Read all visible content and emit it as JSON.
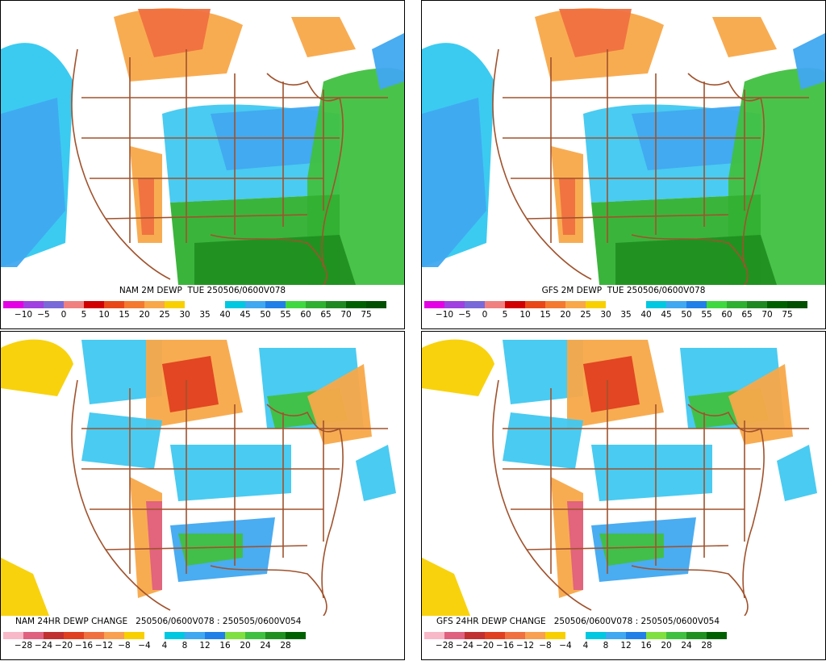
{
  "panels": [
    {
      "id": "nam-dewp",
      "title": "NAM 2M DEWP  TUE 250506/0600V078",
      "kind": "dewp",
      "scale_labels": [
        "−10",
        "−5",
        "0",
        "5",
        "10",
        "15",
        "20",
        "25",
        "30",
        "35",
        "40",
        "45",
        "50",
        "55",
        "60",
        "65",
        "70",
        "75"
      ]
    },
    {
      "id": "gfs-dewp",
      "title": "GFS 2M DEWP  TUE 250506/0600V078",
      "kind": "dewp",
      "scale_labels": [
        "−10",
        "−5",
        "0",
        "5",
        "10",
        "15",
        "20",
        "25",
        "30",
        "35",
        "40",
        "45",
        "50",
        "55",
        "60",
        "65",
        "70",
        "75"
      ]
    },
    {
      "id": "nam-change",
      "title": "NAM 24HR DEWP CHANGE   250506/0600V078 : 250505/0600V054",
      "kind": "change",
      "scale_labels": [
        "−28",
        "−24",
        "−20",
        "−16",
        "−12",
        "−8",
        "−4",
        "4",
        "8",
        "12",
        "16",
        "20",
        "24",
        "28"
      ]
    },
    {
      "id": "gfs-change",
      "title": "GFS 24HR DEWP CHANGE   250506/0600V078 : 250505/0600V054",
      "kind": "change",
      "scale_labels": [
        "−28",
        "−24",
        "−20",
        "−16",
        "−12",
        "−8",
        "−4",
        "4",
        "8",
        "12",
        "16",
        "20",
        "24",
        "28"
      ]
    }
  ],
  "colors": {
    "dewp_scale": [
      "#e400e4",
      "#a040e0",
      "#7a6ad8",
      "#f08080",
      "#d00000",
      "#e84818",
      "#f47a30",
      "#f8a848",
      "#f8d000",
      "#ffffff",
      "#ffffff",
      "#00c8e0",
      "#40a8f0",
      "#2080e8",
      "#40d840",
      "#30b030",
      "#208820",
      "#006000",
      "#005000"
    ],
    "change_scale": [
      "#f8b8c8",
      "#e06080",
      "#c03030",
      "#e04020",
      "#f07040",
      "#f8a050",
      "#f8d000",
      "#ffffff",
      "#00c8e0",
      "#40a8f0",
      "#2080e8",
      "#80e040",
      "#40c040",
      "#209020",
      "#006000"
    ],
    "border": "#a0522d"
  }
}
